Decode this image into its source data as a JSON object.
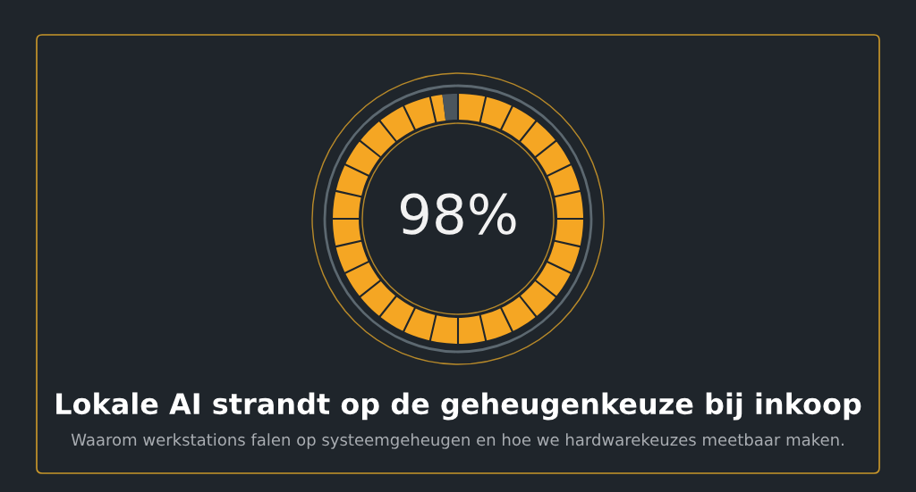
{
  "chart_data": {
    "type": "donut",
    "categories": [
      null,
      null
    ],
    "values": [
      98,
      2
    ],
    "colors": [
      "#f5a623",
      "#4b565e"
    ],
    "title": "Lokale AI strandt op de geheugenkeuze bij inkoop",
    "subtitle": "Waarom werkstations falen op systeemgeheugen en hoe we hardwarekeuzes meetbaar maken.",
    "annotations": [
      "98%"
    ]
  }
}
